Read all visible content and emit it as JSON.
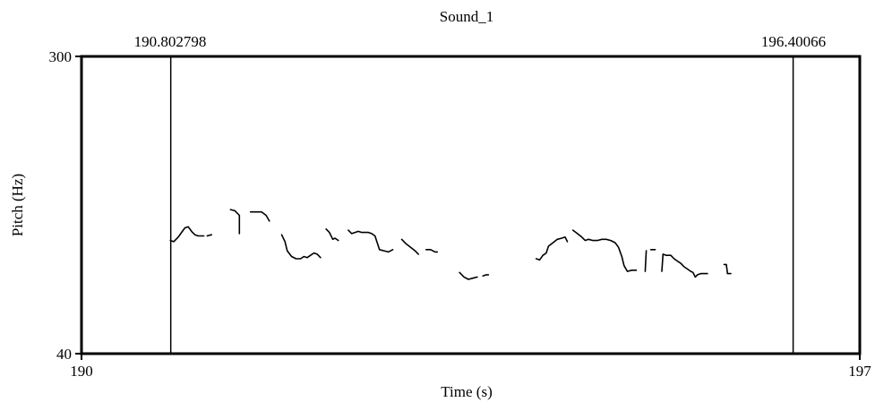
{
  "chart_data": {
    "type": "line",
    "title": "Sound_1",
    "xlabel": "Time (s)",
    "ylabel": "Pitch (Hz)",
    "xlim": [
      190,
      197
    ],
    "ylim": [
      40,
      300
    ],
    "x_tick_labels": [
      "190",
      "197"
    ],
    "y_tick_labels": [
      "40",
      "300"
    ],
    "markers": [
      {
        "label": "190.802798",
        "x": 190.802798
      },
      {
        "label": "196.40066",
        "x": 196.40066
      }
    ],
    "grid": false,
    "legend": "none",
    "line_color": "#000000",
    "series": [
      {
        "segments": [
          [
            [
              190.8,
              139
            ],
            [
              190.83,
              138
            ],
            [
              190.87,
              142
            ],
            [
              190.9,
              146
            ],
            [
              190.93,
              150
            ],
            [
              190.96,
              151
            ],
            [
              190.99,
              147
            ],
            [
              191.02,
              144
            ],
            [
              191.05,
              143
            ],
            [
              191.1,
              143
            ]
          ],
          [
            [
              191.13,
              143
            ],
            [
              191.17,
              144
            ]
          ],
          [
            [
              191.34,
              166
            ],
            [
              191.38,
              165
            ],
            [
              191.42,
              161
            ],
            [
              191.42,
              145
            ]
          ],
          [
            [
              191.52,
              164
            ],
            [
              191.56,
              164
            ],
            [
              191.62,
              164
            ],
            [
              191.66,
              161
            ],
            [
              191.69,
              156
            ]
          ],
          [
            [
              191.8,
              144
            ],
            [
              191.83,
              138
            ],
            [
              191.85,
              130
            ],
            [
              191.89,
              125
            ],
            [
              191.93,
              123
            ],
            [
              191.97,
              123
            ],
            [
              192.0,
              125
            ],
            [
              192.03,
              124
            ],
            [
              192.06,
              126
            ],
            [
              192.09,
              128
            ],
            [
              192.12,
              127
            ],
            [
              192.15,
              124
            ]
          ],
          [
            [
              192.2,
              149
            ],
            [
              192.23,
              146
            ],
            [
              192.26,
              140
            ],
            [
              192.28,
              141
            ],
            [
              192.31,
              139
            ]
          ],
          [
            [
              192.4,
              148
            ],
            [
              192.43,
              145
            ],
            [
              192.46,
              146
            ],
            [
              192.49,
              147
            ],
            [
              192.52,
              146
            ],
            [
              192.55,
              146
            ],
            [
              192.58,
              146
            ],
            [
              192.61,
              145
            ],
            [
              192.64,
              143
            ],
            [
              192.66,
              137
            ],
            [
              192.68,
              131
            ],
            [
              192.72,
              130
            ],
            [
              192.76,
              129
            ],
            [
              192.8,
              131
            ]
          ],
          [
            [
              192.88,
              140
            ],
            [
              192.92,
              136
            ],
            [
              192.96,
              133
            ],
            [
              193.0,
              130
            ],
            [
              193.03,
              127
            ]
          ],
          [
            [
              193.1,
              131
            ],
            [
              193.14,
              131
            ],
            [
              193.18,
              129
            ],
            [
              193.2,
              129
            ]
          ],
          [
            [
              193.4,
              111
            ],
            [
              193.44,
              107
            ],
            [
              193.48,
              105
            ],
            [
              193.52,
              106
            ],
            [
              193.56,
              107
            ]
          ],
          [
            [
              193.61,
              108
            ],
            [
              193.64,
              109
            ],
            [
              193.66,
              109
            ]
          ],
          [
            [
              194.09,
              123
            ],
            [
              194.12,
              122
            ],
            [
              194.15,
              126
            ],
            [
              194.18,
              128
            ],
            [
              194.2,
              134
            ],
            [
              194.24,
              137
            ],
            [
              194.28,
              140
            ],
            [
              194.32,
              141
            ],
            [
              194.35,
              142
            ],
            [
              194.37,
              138
            ]
          ],
          [
            [
              194.42,
              148
            ],
            [
              194.46,
              145
            ],
            [
              194.5,
              142
            ],
            [
              194.53,
              139
            ],
            [
              194.56,
              140
            ],
            [
              194.6,
              139
            ],
            [
              194.64,
              139
            ],
            [
              194.68,
              140
            ],
            [
              194.72,
              140
            ],
            [
              194.76,
              139
            ],
            [
              194.8,
              137
            ],
            [
              194.83,
              133
            ],
            [
              194.86,
              125
            ],
            [
              194.88,
              117
            ],
            [
              194.91,
              112
            ],
            [
              194.95,
              113
            ],
            [
              194.99,
              113
            ]
          ],
          [
            [
              195.07,
              112
            ],
            [
              195.08,
              130
            ]
          ],
          [
            [
              195.12,
              131
            ],
            [
              195.16,
              131
            ]
          ],
          [
            [
              195.22,
              112
            ],
            [
              195.23,
              127
            ],
            [
              195.26,
              126
            ],
            [
              195.3,
              126
            ],
            [
              195.33,
              123
            ],
            [
              195.36,
              121
            ],
            [
              195.39,
              119
            ],
            [
              195.42,
              116
            ],
            [
              195.45,
              114
            ],
            [
              195.48,
              112
            ],
            [
              195.5,
              111
            ],
            [
              195.52,
              107
            ],
            [
              195.54,
              109
            ],
            [
              195.57,
              110
            ],
            [
              195.6,
              110
            ],
            [
              195.63,
              110
            ]
          ],
          [
            [
              195.78,
              118
            ],
            [
              195.8,
              118
            ],
            [
              195.81,
              110
            ],
            [
              195.84,
              110
            ]
          ]
        ]
      }
    ]
  }
}
